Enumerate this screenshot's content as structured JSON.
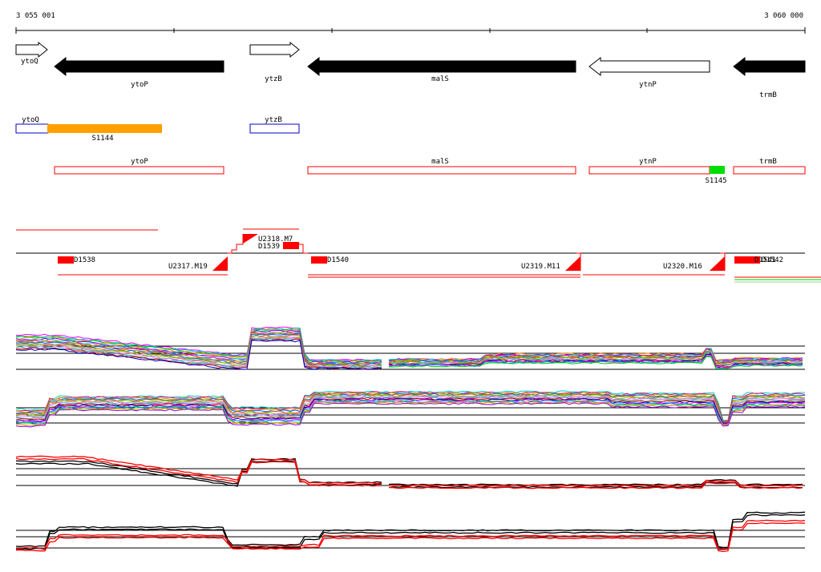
{
  "ruler": {
    "start_label": "3 055 001",
    "end_label": "3 060 000"
  },
  "colors": {
    "gene_strong": "#000000",
    "feature_box": "#ff0000",
    "operon_box": "#0000cc",
    "highlight_orange": "#ffa000",
    "highlight_green": "#00dd00",
    "baseline": "#000000",
    "segment_red": "#ff0000"
  },
  "genes": [
    {
      "label": "ytoQ",
      "strand": "+",
      "style": "open"
    },
    {
      "label": "ytoP",
      "strand": "-",
      "style": "filled"
    },
    {
      "label": "ytzB",
      "strand": "+",
      "style": "open"
    },
    {
      "label": "malS",
      "strand": "-",
      "style": "filled"
    },
    {
      "label": "ytnP",
      "strand": "-",
      "style": "open"
    },
    {
      "label": "trmB",
      "strand": "-",
      "style": "filled"
    }
  ],
  "operon_track": [
    {
      "label": "ytoQ",
      "color": "blue"
    },
    {
      "label": "S1144",
      "color": "orange"
    },
    {
      "label": "ytzB",
      "color": "blue"
    }
  ],
  "annotation_track": [
    {
      "label": "ytoP"
    },
    {
      "label": "malS"
    },
    {
      "label": "ytnP"
    },
    {
      "label": "S1145",
      "color": "green"
    },
    {
      "label": "trmB"
    }
  ],
  "segment_labels": [
    "D1538",
    "U2317.M19",
    "U2318.M7",
    "D1539",
    "D1540",
    "U2319.M11",
    "U2320.M16",
    "D1541",
    "D1542"
  ],
  "expression_panels": [
    {
      "name": "panel-1",
      "style": "multicolor"
    },
    {
      "name": "panel-2",
      "style": "multicolor"
    },
    {
      "name": "panel-3",
      "style": "red-black"
    },
    {
      "name": "panel-4",
      "style": "red-black"
    }
  ]
}
